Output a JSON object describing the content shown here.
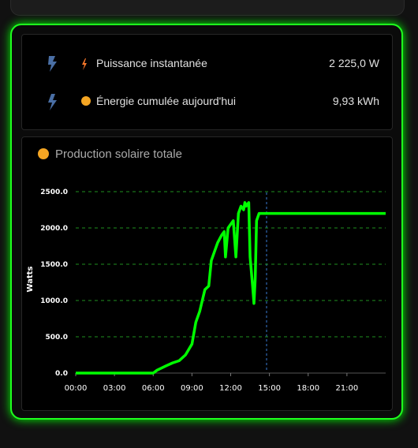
{
  "entities": [
    {
      "label": "Puissance instantanée",
      "state": "2 225,0 W"
    },
    {
      "label": "Énergie cumulée aujourd'hui",
      "state": "9,93 kWh"
    }
  ],
  "chart_data": {
    "type": "line",
    "title": "Production solaire totale",
    "y_label": "Watts",
    "x": [
      0,
      6,
      6.3,
      7,
      7.5,
      8,
      8.5,
      9,
      9.3,
      9.6,
      9.8,
      10,
      10.3,
      10.5,
      10.8,
      11,
      11.3,
      11.5,
      11.6,
      11.8,
      12,
      12.2,
      12.4,
      12.6,
      12.8,
      13,
      13.1,
      13.2,
      13.4,
      13.5,
      13.7,
      13.8,
      13.9,
      14,
      14.2,
      14.4,
      24
    ],
    "series": [
      {
        "name": "Production solaire totale",
        "color": "#00ff00",
        "values": [
          0,
          0,
          40,
          100,
          140,
          170,
          250,
          400,
          700,
          850,
          1000,
          1150,
          1200,
          1550,
          1700,
          1800,
          1900,
          1950,
          1600,
          2000,
          2050,
          2100,
          1600,
          2200,
          2300,
          2250,
          2350,
          2300,
          2350,
          1600,
          1200,
          960,
          1300,
          2100,
          2200,
          2200,
          2200
        ]
      }
    ],
    "xlim": [
      0,
      24
    ],
    "xticks": [
      {
        "value": 0,
        "label": "00:00"
      },
      {
        "value": 3,
        "label": "03:00"
      },
      {
        "value": 6,
        "label": "06:00"
      },
      {
        "value": 9,
        "label": "09:00"
      },
      {
        "value": 12,
        "label": "12:00"
      },
      {
        "value": 15,
        "label": "15:00"
      },
      {
        "value": 18,
        "label": "18:00"
      },
      {
        "value": 21,
        "label": "21:00"
      }
    ],
    "ylim": [
      0,
      2500
    ],
    "yticks": [
      {
        "value": 0,
        "label": "0.0"
      },
      {
        "value": 500,
        "label": "500.0"
      },
      {
        "value": 1000,
        "label": "1000.0"
      },
      {
        "value": 1500,
        "label": "1500.0"
      },
      {
        "value": 2000,
        "label": "2000.0"
      },
      {
        "value": 2500,
        "label": "2500.0"
      }
    ],
    "grid": true
  }
}
